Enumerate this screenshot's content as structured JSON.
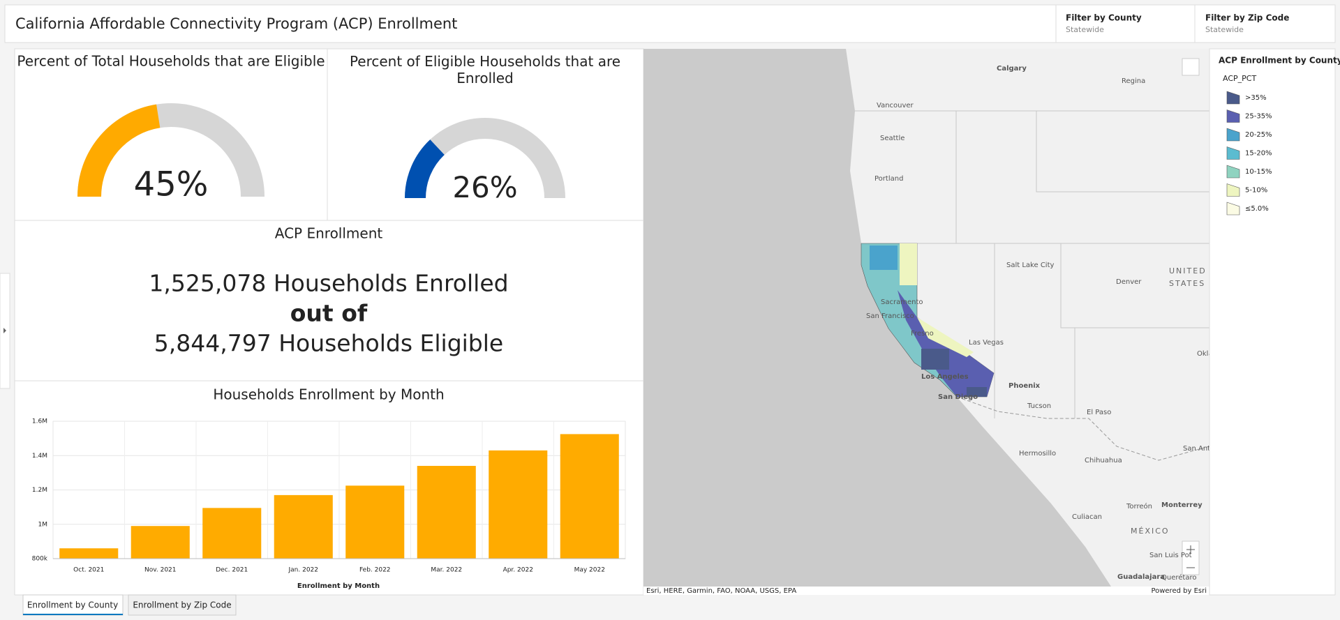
{
  "header": {
    "title": "California Affordable Connectivity Program (ACP) Enrollment",
    "filters": [
      {
        "label": "Filter by County",
        "value": "Statewide"
      },
      {
        "label": "Filter by Zip Code",
        "value": "Statewide"
      }
    ]
  },
  "gauges": [
    {
      "title": "Percent of Total Households that are Eligible",
      "value": 45,
      "value_label": "45%",
      "range": [
        0,
        100
      ],
      "color": "#ffaa00"
    },
    {
      "title": "Percent of Eligible Households that are Enrolled",
      "value": 26,
      "value_label": "26%",
      "range": [
        0,
        100
      ],
      "color": "#0050b0"
    }
  ],
  "enrollment": {
    "title": "ACP Enrollment",
    "lines": [
      "1,525,078 Households Enrolled",
      "out of",
      "5,844,797 Households Eligible"
    ]
  },
  "chart_data": {
    "type": "bar",
    "title": "Households Enrollment by Month",
    "x_label": "Enrollment by Month",
    "categories": [
      "Oct. 2021",
      "Nov. 2021",
      "Dec. 2021",
      "Jan. 2022",
      "Feb. 2022",
      "Mar. 2022",
      "Apr. 2022",
      "May 2022"
    ],
    "values": [
      860000,
      990000,
      1095000,
      1170000,
      1225000,
      1340000,
      1430000,
      1525078
    ],
    "color": "#ffab00",
    "ylim": [
      800000,
      1600000
    ],
    "yticks": [
      {
        "value": 800000,
        "label": "800k"
      },
      {
        "value": 1000000,
        "label": "1M"
      },
      {
        "value": 1200000,
        "label": "1.2M"
      },
      {
        "value": 1400000,
        "label": "1.4M"
      },
      {
        "value": 1600000,
        "label": "1.6M"
      }
    ],
    "grid": true
  },
  "map": {
    "labels": [
      "Calgary",
      "Regina",
      "Vancouver",
      "Seattle",
      "Portland",
      "Salt Lake City",
      "Denver",
      "UNITED",
      "STATES",
      "Sacramento",
      "San Francisco",
      "Fresno",
      "Las Vegas",
      "Oklah",
      "Los Angeles",
      "Phoenix",
      "San Diego",
      "Tucson",
      "El Paso",
      "Hermosillo",
      "Chihuahua",
      "San Ant",
      "Monterrey",
      "Torreón",
      "Culiacan",
      "MÉXICO",
      "San Luis Pot",
      "Guadalajara",
      "Querétaro"
    ],
    "attribution": "Esri, HERE, Garmin, FAO, NOAA, USGS, EPA",
    "powered_by": "Powered by Esri"
  },
  "legend": {
    "title": "ACP Enrollment by County",
    "field": "ACP_PCT",
    "items": [
      {
        "label": ">35%",
        "color": "#4a5a8a"
      },
      {
        "label": "25-35%",
        "color": "#5a5fb0"
      },
      {
        "label": "20-25%",
        "color": "#4aa3cc"
      },
      {
        "label": "15-20%",
        "color": "#5bbcd0"
      },
      {
        "label": "10-15%",
        "color": "#8fd3c0"
      },
      {
        "label": "5-10%",
        "color": "#eef5c0"
      },
      {
        "label": "≤5.0%",
        "color": "#fbfbe4"
      }
    ]
  },
  "tabs": [
    "Enrollment by County",
    "Enrollment by Zip Code"
  ]
}
